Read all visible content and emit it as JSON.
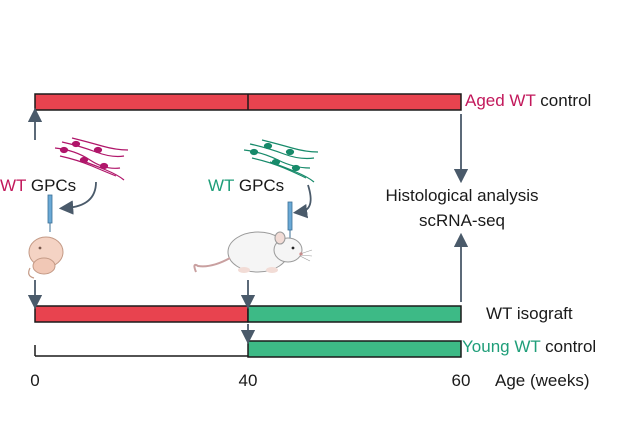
{
  "colors": {
    "aged": "#e8434f",
    "young": "#3dba86",
    "magenta": "#c2185b",
    "teal": "#1f9e79",
    "arrow": "#4a5a6a",
    "text": "#1a1a1a"
  },
  "rows": {
    "aged_prefix": "Aged WT",
    "aged_suffix": " control",
    "isograft": "WT isograft",
    "young_prefix": "Young WT",
    "young_suffix": " control"
  },
  "injections": {
    "left_wt": "WT",
    "left_gpcs": " GPCs",
    "right_wt": "WT",
    "right_gpcs": " GPCs"
  },
  "analysis": {
    "line1": "Histological analysis",
    "line2": "scRNA-seq"
  },
  "axis": {
    "ticks": [
      "0",
      "40",
      "60"
    ],
    "label": "Age (weeks)"
  },
  "icons": [
    "cell-cluster-icon",
    "pipette-icon",
    "pup-icon",
    "mouse-icon",
    "arrow-icon"
  ]
}
